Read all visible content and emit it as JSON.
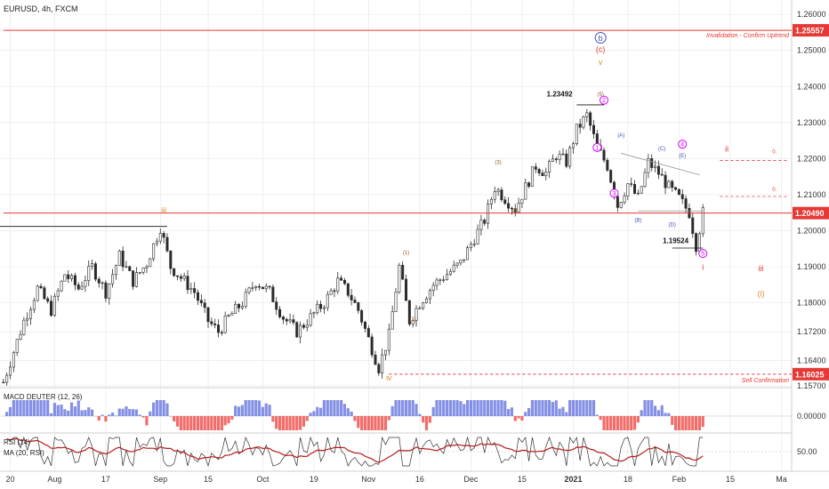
{
  "header": {
    "symbol": "EURUSD, 4h, FXCM"
  },
  "colors": {
    "candle": "#2b2b2b",
    "grid": "#e6e6e6",
    "axis_text": "#333333",
    "red": "#e53935",
    "blue": "#3f51b5",
    "magenta": "#d500f9",
    "brown": "#8d5a2b",
    "orange": "#e08a2e",
    "macd_pos": "#6f7de0",
    "macd_neg": "#ef5350",
    "rsi": "#333333",
    "rsi_ma": "#b71c1c",
    "label_bg": "#e53935"
  },
  "chart_data": {
    "type": "candlestick",
    "y_ticks": [
      "1.26000",
      "1.25000",
      "1.24000",
      "1.23000",
      "1.22000",
      "1.21000",
      "1.20000",
      "1.19000",
      "1.18000",
      "1.17200",
      "1.16400",
      "1.15700"
    ],
    "x_ticks": [
      "20",
      "Aug",
      "17",
      "Sep",
      "15",
      "Oct",
      "19",
      "Nov",
      "16",
      "Dec",
      "15",
      "2021",
      "18",
      "Feb",
      "15",
      "Ma"
    ],
    "ylim": [
      1.157,
      1.262
    ],
    "price_path": [
      [
        0,
        1.158
      ],
      [
        6,
        1.175
      ],
      [
        10,
        1.184
      ],
      [
        14,
        1.178
      ],
      [
        18,
        1.188
      ],
      [
        22,
        1.184
      ],
      [
        26,
        1.19
      ],
      [
        30,
        1.183
      ],
      [
        34,
        1.193
      ],
      [
        38,
        1.186
      ],
      [
        42,
        1.191
      ],
      [
        46,
        1.201
      ],
      [
        49,
        1.19
      ],
      [
        52,
        1.187
      ],
      [
        56,
        1.183
      ],
      [
        60,
        1.175
      ],
      [
        63,
        1.172
      ],
      [
        66,
        1.176
      ],
      [
        70,
        1.18
      ],
      [
        74,
        1.186
      ],
      [
        78,
        1.183
      ],
      [
        82,
        1.176
      ],
      [
        86,
        1.172
      ],
      [
        90,
        1.176
      ],
      [
        94,
        1.18
      ],
      [
        98,
        1.186
      ],
      [
        101,
        1.183
      ],
      [
        104,
        1.178
      ],
      [
        107,
        1.17
      ],
      [
        110,
        1.162
      ],
      [
        113,
        1.171
      ],
      [
        116,
        1.19
      ],
      [
        119,
        1.175
      ],
      [
        122,
        1.18
      ],
      [
        126,
        1.185
      ],
      [
        130,
        1.188
      ],
      [
        134,
        1.191
      ],
      [
        138,
        1.198
      ],
      [
        141,
        1.203
      ],
      [
        144,
        1.212
      ],
      [
        147,
        1.209
      ],
      [
        150,
        1.206
      ],
      [
        153,
        1.212
      ],
      [
        156,
        1.218
      ],
      [
        159,
        1.216
      ],
      [
        162,
        1.221
      ],
      [
        165,
        1.219
      ],
      [
        168,
        1.228
      ],
      [
        171,
        1.232
      ],
      [
        174,
        1.223
      ],
      [
        177,
        1.218
      ],
      [
        180,
        1.207
      ],
      [
        183,
        1.213
      ],
      [
        186,
        1.209
      ],
      [
        189,
        1.219
      ],
      [
        192,
        1.216
      ],
      [
        195,
        1.212
      ],
      [
        198,
        1.209
      ],
      [
        201,
        1.205
      ],
      [
        203,
        1.196
      ],
      [
        205,
        1.205
      ]
    ],
    "macd": {
      "label": "MACD DEUTER (12, 26)",
      "tick": "0.00000"
    },
    "rsi": {
      "label_a": "RSI (14)",
      "label_b": "MA (20, RSI)",
      "tick": "50.00"
    },
    "levels": [
      {
        "price": 1.25557,
        "label": "1.25557",
        "note": "Invalidation - Confirm Uptrend",
        "style": "solid",
        "from": 0
      },
      {
        "price": 1.2049,
        "label": "1.20490",
        "note": "",
        "style": "solid",
        "from": 0
      },
      {
        "price": 1.16025,
        "label": "1.16025",
        "note": "Sell Confirmation",
        "style": "dashed",
        "from": 113
      }
    ],
    "marks": [
      {
        "text": "b",
        "kind": "circle-blue",
        "i": 175,
        "p": 1.2535
      },
      {
        "text": "(c)",
        "kind": "red",
        "i": 175,
        "p": 1.2495
      },
      {
        "text": "v",
        "kind": "orange",
        "i": 175,
        "p": 1.246
      },
      {
        "text": "1.23492",
        "kind": "price-black",
        "i": 163,
        "p": 1.2372
      },
      {
        "text": "(5)",
        "kind": "brown-small",
        "i": 175,
        "p": 1.2374
      },
      {
        "text": "2",
        "kind": "circle-magenta",
        "i": 176,
        "p": 1.2362
      },
      {
        "text": "1",
        "kind": "circle-magenta",
        "i": 174,
        "p": 1.2231
      },
      {
        "text": "3",
        "kind": "circle-magenta",
        "i": 179,
        "p": 1.2104
      },
      {
        "text": "(A)",
        "kind": "blue-small",
        "i": 181,
        "p": 1.226
      },
      {
        "text": "(B)",
        "kind": "blue-small",
        "i": 186,
        "p": 1.2025
      },
      {
        "text": "(C)",
        "kind": "blue-small",
        "i": 193,
        "p": 1.2223
      },
      {
        "text": "(D)",
        "kind": "blue-small",
        "i": 196,
        "p": 1.2013
      },
      {
        "text": "(E)",
        "kind": "blue-small",
        "i": 199,
        "p": 1.2204
      },
      {
        "text": "4",
        "kind": "circle-magenta",
        "i": 199,
        "p": 1.224
      },
      {
        "text": "5",
        "kind": "circle-magenta",
        "i": 205,
        "p": 1.1937
      },
      {
        "text": "1.19524",
        "kind": "price-black",
        "i": 197,
        "p": 1.1965
      },
      {
        "text": "i",
        "kind": "red",
        "i": 205,
        "p": 1.1892
      },
      {
        "text": "ii",
        "kind": "red",
        "i": 212,
        "p": 1.222
      },
      {
        "text": "iii",
        "kind": "red",
        "i": 222,
        "p": 1.1888
      },
      {
        "text": "(i)",
        "kind": "orange",
        "i": 222,
        "p": 1.1818
      },
      {
        "text": "iii",
        "kind": "orange",
        "i": 47,
        "p": 1.2049
      },
      {
        "text": "(1)",
        "kind": "brown-small",
        "i": 118,
        "p": 1.1935
      },
      {
        "text": "(2)",
        "kind": "brown-small",
        "i": 120,
        "p": 1.175
      },
      {
        "text": "(3)",
        "kind": "brown-small",
        "i": 145,
        "p": 1.2185
      },
      {
        "text": "(4)",
        "kind": "brown-small",
        "i": 150,
        "p": 1.2051
      },
      {
        "text": "iv",
        "kind": "orange",
        "i": 113,
        "p": 1.1585
      },
      {
        "text": "0.",
        "kind": "red-small",
        "i": 226,
        "p": 1.2215
      },
      {
        "text": "0.",
        "kind": "red-small",
        "i": 226,
        "p": 1.211
      }
    ]
  }
}
